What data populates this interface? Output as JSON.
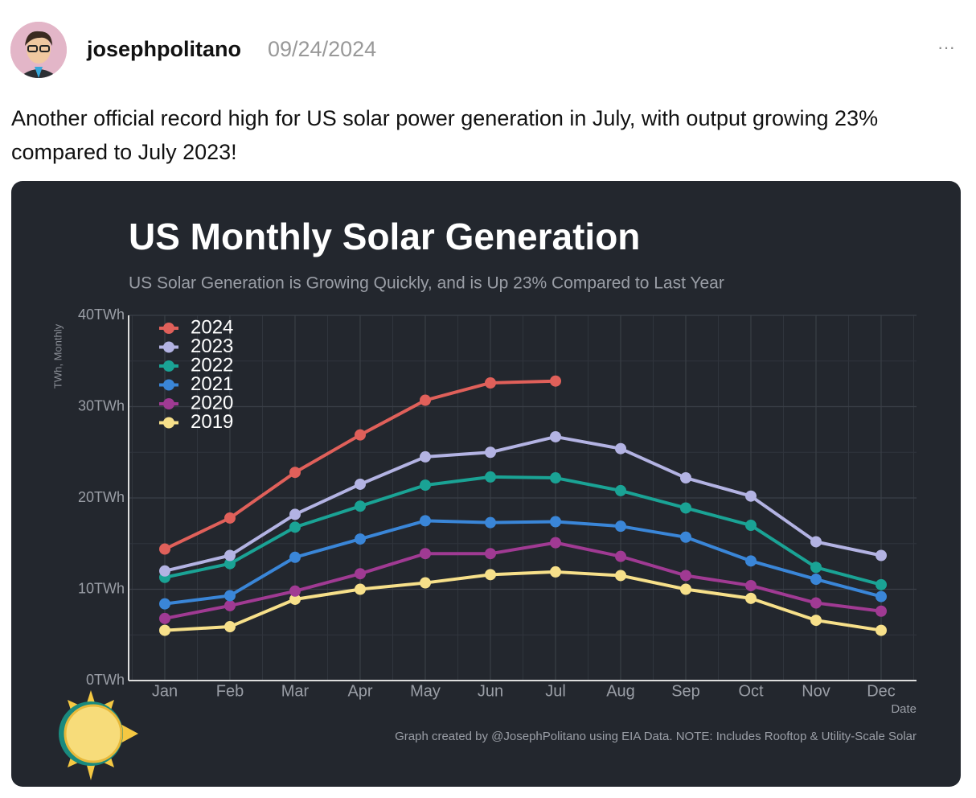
{
  "post": {
    "username": "josephpolitano",
    "date": "09/24/2024",
    "more": "···",
    "text": "Another official record high for US solar power generation in July, with output growing 23% compared to July 2023!"
  },
  "chart_data": {
    "type": "line",
    "title": "US Monthly Solar Generation",
    "subtitle": "US Solar Generation is Growing Quickly, and is Up 23% Compared to Last Year",
    "y_label": "TWh, Monthly",
    "x_label": "Date",
    "caption": "Graph created by @JosephPolitano using EIA Data. NOTE: Includes Rooftop & Utility-Scale Solar",
    "categories": [
      "Jan",
      "Feb",
      "Mar",
      "Apr",
      "May",
      "Jun",
      "Jul",
      "Aug",
      "Sep",
      "Oct",
      "Nov",
      "Dec"
    ],
    "ylim": [
      0,
      40
    ],
    "yticks": [
      {
        "value": 0,
        "label": "0TWh"
      },
      {
        "value": 10,
        "label": "10TWh"
      },
      {
        "value": 20,
        "label": "20TWh"
      },
      {
        "value": 30,
        "label": "30TWh"
      },
      {
        "value": 40,
        "label": "40TWh"
      }
    ],
    "grid": true,
    "legend": "upper left",
    "series": [
      {
        "name": "2024",
        "color": "#e0605a",
        "values": [
          14.4,
          17.8,
          22.8,
          26.9,
          30.7,
          32.6,
          32.8,
          null,
          null,
          null,
          null,
          null
        ]
      },
      {
        "name": "2023",
        "color": "#b3b3e3",
        "values": [
          12.0,
          13.7,
          18.2,
          21.5,
          24.5,
          25.0,
          26.7,
          25.4,
          22.2,
          20.2,
          15.2,
          13.7
        ]
      },
      {
        "name": "2022",
        "color": "#1aa395",
        "values": [
          11.3,
          12.8,
          16.8,
          19.1,
          21.4,
          22.3,
          22.2,
          20.8,
          18.9,
          17.0,
          12.4,
          10.5
        ]
      },
      {
        "name": "2021",
        "color": "#3a86d8",
        "values": [
          8.4,
          9.3,
          13.5,
          15.5,
          17.5,
          17.3,
          17.4,
          16.9,
          15.7,
          13.1,
          11.1,
          9.2
        ]
      },
      {
        "name": "2020",
        "color": "#a03a93",
        "values": [
          6.8,
          8.2,
          9.8,
          11.7,
          13.9,
          13.9,
          15.1,
          13.6,
          11.5,
          10.4,
          8.5,
          7.6
        ]
      },
      {
        "name": "2019",
        "color": "#f7e08a",
        "values": [
          5.5,
          5.9,
          8.9,
          10.0,
          10.7,
          11.6,
          11.9,
          11.5,
          10.0,
          9.0,
          6.6,
          5.5
        ]
      }
    ]
  }
}
